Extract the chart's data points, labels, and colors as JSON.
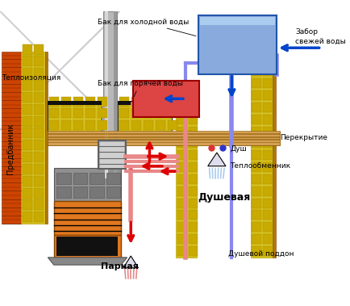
{
  "title": "",
  "bg_color": "#ffffff",
  "fig_width": 4.34,
  "fig_height": 3.79,
  "dpi": 100,
  "labels": {
    "teploisolacia": "Теплоизоляция",
    "bak_kholod": "Бак для холодной воды",
    "bak_goryach": "Бак для горячей воды",
    "zabor": "Забор\nсвежей воды",
    "perekrytie": "Перекрытие",
    "dush": "Душ",
    "teploobmennik": "Теплообменник",
    "dushevaya": "Душевая",
    "parnaya": "Парная",
    "dushevoi_poddon": "Душевой поддон",
    "predbannik": "Предбанник"
  },
  "colors": {
    "wall_yellow": "#e8d44d",
    "wall_brown": "#c8860a",
    "wall_brick": "#cc4400",
    "chimney_gray": "#909090",
    "furnace_orange": "#e07820",
    "furnace_dark": "#333333",
    "hot_water_red": "#dd2222",
    "cold_water_blue": "#4488cc",
    "tank_cold_bg": "#88aadd",
    "tank_hot_bg": "#dd4444",
    "pipe_hot": "#e88888",
    "pipe_cold": "#8888ee",
    "floor_wood": "#d4a055",
    "arrow_red": "#dd0000",
    "arrow_blue": "#0044cc",
    "text_black": "#000000",
    "insulation_yellow": "#d4c020",
    "metal_gray": "#b0b0b0",
    "stones_gray": "#888888"
  }
}
